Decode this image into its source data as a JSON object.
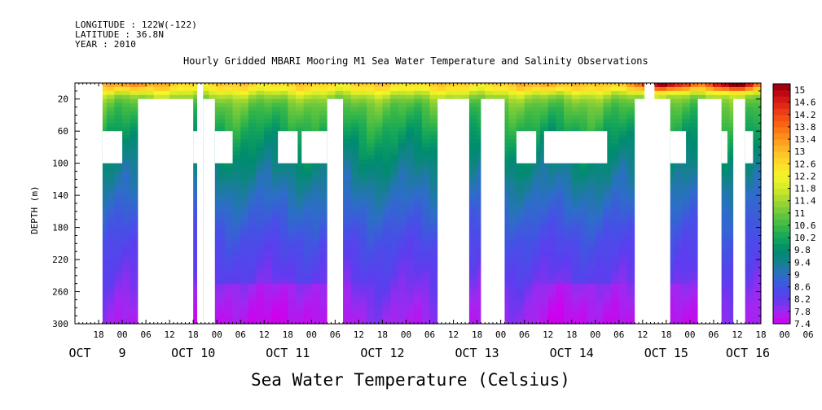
{
  "header": {
    "line1": "LONGITUDE : 122W(-122)",
    "line2": "LATITUDE : 36.8N",
    "line3": "YEAR : 2010"
  },
  "chart_data": {
    "type": "heatmap",
    "title": "Hourly Gridded MBARI Mooring M1 Sea Water Temperature and Salinity Observations",
    "xlabel": "Sea Water Temperature (Celsius)",
    "ylabel": "DEPTH (m)",
    "ylim": [
      300,
      0
    ],
    "y_ticks": [
      20,
      60,
      100,
      140,
      180,
      220,
      260,
      300
    ],
    "x_range_hours": [
      0,
      174
    ],
    "x_hour_ticks": [
      "18",
      "00",
      "06",
      "12",
      "18",
      "00",
      "06",
      "12",
      "18",
      "00",
      "06",
      "12",
      "18",
      "00",
      "06",
      "12",
      "18",
      "00",
      "06",
      "12",
      "18",
      "00",
      "06",
      "12",
      "18",
      "00",
      "06",
      "12",
      "18",
      "00",
      "06",
      "12"
    ],
    "x_day_labels": [
      "OCT",
      "9",
      "OCT 10",
      "OCT 11",
      "OCT 12",
      "OCT 13",
      "OCT 14",
      "OCT 15",
      "OCT 16"
    ],
    "colorbar": {
      "min": 7.4,
      "max": 15.2,
      "step": 0.2,
      "labels": [
        "15",
        "14.6",
        "14.2",
        "13.8",
        "13.4",
        "13",
        "12.6",
        "12.2",
        "11.8",
        "11.4",
        "11",
        "10.6",
        "10.2",
        "9.8",
        "9.4",
        "9",
        "8.6",
        "8.2",
        "7.8",
        "7.4"
      ]
    },
    "temperature_profile": {
      "depths": [
        5,
        12,
        20,
        30,
        45,
        60,
        80,
        100,
        130,
        160,
        200,
        240,
        280,
        300
      ],
      "values": [
        12.6,
        11.9,
        11.2,
        10.8,
        10.5,
        10.2,
        9.9,
        9.6,
        9.2,
        8.9,
        8.5,
        8.2,
        7.9,
        7.8
      ]
    },
    "missing_data_hours": [
      {
        "from": 0,
        "to": 7,
        "depth_from": 0,
        "depth_to": 300
      },
      {
        "from": 7,
        "to": 12,
        "depth_from": 60,
        "depth_to": 100
      },
      {
        "from": 16,
        "to": 30,
        "depth_from": 20,
        "depth_to": 300
      },
      {
        "from": 30,
        "to": 31.5,
        "depth_from": 60,
        "depth_to": 100
      },
      {
        "from": 31,
        "to": 32.5,
        "depth_from": 0,
        "depth_to": 300
      },
      {
        "from": 32.5,
        "to": 35.5,
        "depth_from": 20,
        "depth_to": 300
      },
      {
        "from": 35.5,
        "to": 40,
        "depth_from": 60,
        "depth_to": 100
      },
      {
        "from": 51.5,
        "to": 56.5,
        "depth_from": 60,
        "depth_to": 100
      },
      {
        "from": 57.5,
        "to": 64,
        "depth_from": 60,
        "depth_to": 100
      },
      {
        "from": 64,
        "to": 68,
        "depth_from": 20,
        "depth_to": 300
      },
      {
        "from": 92,
        "to": 100,
        "depth_from": 20,
        "depth_to": 300
      },
      {
        "from": 103,
        "to": 109,
        "depth_from": 20,
        "depth_to": 300
      },
      {
        "from": 112,
        "to": 117,
        "depth_from": 60,
        "depth_to": 100
      },
      {
        "from": 119,
        "to": 135,
        "depth_from": 60,
        "depth_to": 100
      },
      {
        "from": 142,
        "to": 151,
        "depth_from": 20,
        "depth_to": 300
      },
      {
        "from": 144.5,
        "to": 147,
        "depth_from": 0,
        "depth_to": 20
      },
      {
        "from": 151,
        "to": 155,
        "depth_from": 60,
        "depth_to": 100
      },
      {
        "from": 158,
        "to": 164,
        "depth_from": 20,
        "depth_to": 300
      },
      {
        "from": 164,
        "to": 165.5,
        "depth_from": 60,
        "depth_to": 100
      },
      {
        "from": 167,
        "to": 170,
        "depth_from": 20,
        "depth_to": 300
      },
      {
        "from": 170,
        "to": 172,
        "depth_from": 60,
        "depth_to": 100
      }
    ]
  }
}
